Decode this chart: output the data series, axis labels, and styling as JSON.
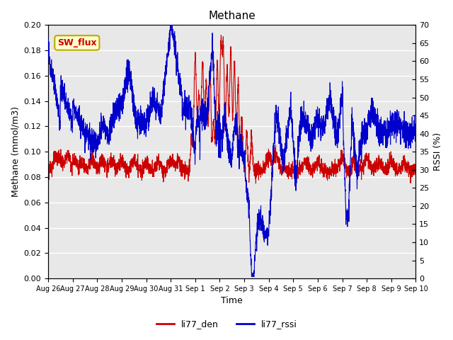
{
  "title": "Methane",
  "xlabel": "Time",
  "ylabel_left": "Methane (mmol/m3)",
  "ylabel_right": "RSSI (%)",
  "ylim_left": [
    0.0,
    0.2
  ],
  "ylim_right": [
    0,
    70
  ],
  "yticks_left": [
    0.0,
    0.02,
    0.04,
    0.06,
    0.08,
    0.1,
    0.12,
    0.14,
    0.16,
    0.18,
    0.2
  ],
  "yticks_right": [
    0,
    5,
    10,
    15,
    20,
    25,
    30,
    35,
    40,
    45,
    50,
    55,
    60,
    65,
    70
  ],
  "color_den": "#cc0000",
  "color_rssi": "#0000cc",
  "bg_color": "#e8e8e8",
  "legend_entries": [
    "li77_den",
    "li77_rssi"
  ],
  "sw_flux_label": "SW_flux",
  "sw_flux_bg": "#ffffcc",
  "sw_flux_border": "#bbaa00",
  "sw_flux_text_color": "#cc0000",
  "xtick_labels": [
    "Aug 26",
    "Aug 27",
    "Aug 28",
    "Aug 29",
    "Aug 30",
    "Aug 31",
    "Sep 1",
    "Sep 2",
    "Sep 3",
    "Sep 4",
    "Sep 5",
    "Sep 6",
    "Sep 7",
    "Sep 8",
    "Sep 9",
    "Sep 10"
  ],
  "n_points": 3000
}
